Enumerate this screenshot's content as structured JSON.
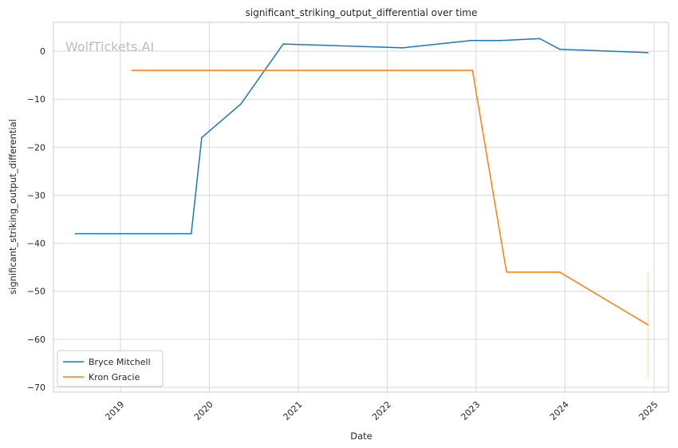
{
  "chart_data": {
    "type": "line",
    "title": "significant_striking_output_differential over time",
    "xlabel": "Date",
    "ylabel": "significant_striking_output_differential",
    "xlim": [
      "2018-04-01",
      "2025-03-01"
    ],
    "ylim": [
      -71,
      6
    ],
    "x_ticks": [
      "2019",
      "2020",
      "2021",
      "2022",
      "2023",
      "2024",
      "2025"
    ],
    "y_ticks": [
      0,
      -10,
      -20,
      -30,
      -40,
      -50,
      -60,
      -70
    ],
    "grid": true,
    "legend": "lower-left",
    "watermark": "WolfTickets.AI",
    "series": [
      {
        "name": "Bryce Mitchell",
        "color": "#1f77b4",
        "points": [
          {
            "x": "2018-06-30",
            "y": -38
          },
          {
            "x": "2019-10-19",
            "y": -38
          },
          {
            "x": "2019-12-01",
            "y": -18
          },
          {
            "x": "2020-05-10",
            "y": -11
          },
          {
            "x": "2020-10-31",
            "y": 1.5
          },
          {
            "x": "2022-03-05",
            "y": 0.7
          },
          {
            "x": "2022-12-10",
            "y": 2.2
          },
          {
            "x": "2023-04-08",
            "y": 2.2
          },
          {
            "x": "2023-09-20",
            "y": 2.6
          },
          {
            "x": "2023-12-10",
            "y": 0.4
          },
          {
            "x": "2024-12-07",
            "y": -0.3
          }
        ]
      },
      {
        "name": "Kron Gracie",
        "color": "#ff7f0e",
        "points": [
          {
            "x": "2019-02-17",
            "y": -4
          },
          {
            "x": "2022-12-17",
            "y": -4
          },
          {
            "x": "2023-05-06",
            "y": -46
          },
          {
            "x": "2023-12-10",
            "y": -46
          },
          {
            "x": "2024-12-07",
            "y": -57
          }
        ],
        "error_bar": {
          "x": "2024-12-07",
          "low": -68,
          "high": -46
        }
      }
    ]
  }
}
